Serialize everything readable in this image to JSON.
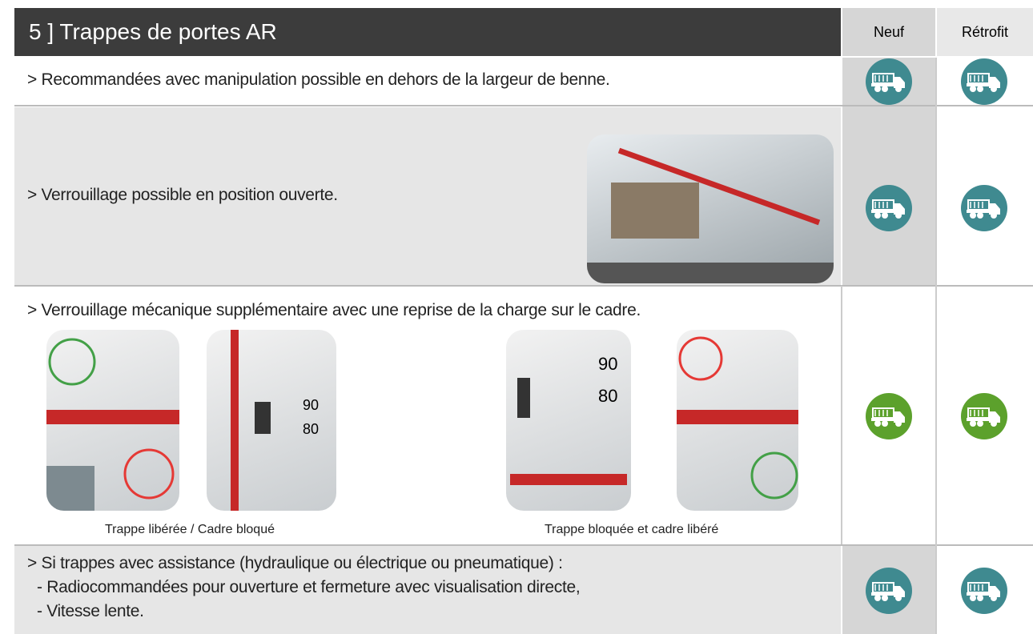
{
  "header": {
    "title": "5 ] Trappes de portes AR",
    "columns": [
      "Neuf",
      "Rétrofit"
    ]
  },
  "rows": [
    {
      "text": "> Recommandées avec manipulation possible en dehors de la largeur de benne."
    },
    {
      "text": "> Verrouillage possible en position ouverte."
    },
    {
      "text": "> Verrouillage mécanique supplémentaire avec une reprise de la charge sur le cadre.",
      "captions": [
        "Trappe libérée / Cadre bloqué",
        "Trappe bloquée et cadre libéré"
      ]
    },
    {
      "lines": [
        "> Si trappes avec assistance (hydraulique ou électrique ou pneumatique) :",
        "- Radiocommandées pour ouverture et fermeture avec visualisation directe,",
        "- Vitesse lente."
      ]
    }
  ]
}
